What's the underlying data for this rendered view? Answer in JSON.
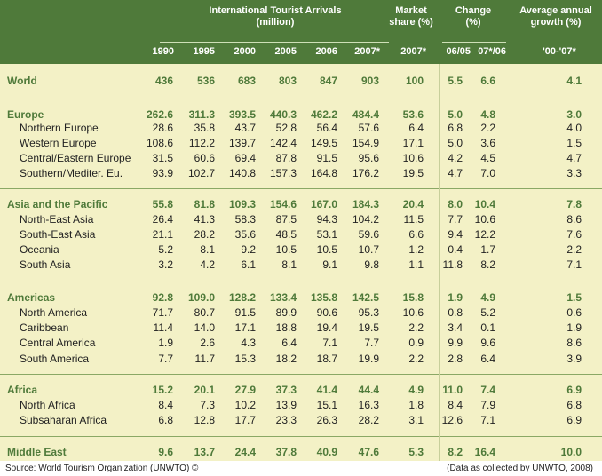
{
  "header": {
    "arrivals_title_line1": "International Tourist Arrivals",
    "arrivals_title_line2": "(million)",
    "market_share_line1": "Market",
    "market_share_line2": "share (%)",
    "change_line1": "Change",
    "change_line2": "(%)",
    "growth_line1": "Average annual",
    "growth_line2": "growth (%)",
    "years": [
      "1990",
      "1995",
      "2000",
      "2005",
      "2006",
      "2007*"
    ],
    "market_share_year": "2007*",
    "change_06_05": "06/05",
    "change_07_06": "07*/06",
    "growth_period": "'00-'07*"
  },
  "rows": [
    {
      "label": "World",
      "type": "region",
      "v": [
        "436",
        "536",
        "683",
        "803",
        "847",
        "903",
        "100",
        "5.5",
        "6.6",
        "4.1"
      ]
    },
    {
      "label": "Europe",
      "type": "region",
      "v": [
        "262.6",
        "311.3",
        "393.5",
        "440.3",
        "462.2",
        "484.4",
        "53.6",
        "5.0",
        "4.8",
        "3.0"
      ]
    },
    {
      "label": "Northern Europe",
      "type": "sub",
      "v": [
        "28.6",
        "35.8",
        "43.7",
        "52.8",
        "56.4",
        "57.6",
        "6.4",
        "6.8",
        "2.2",
        "4.0"
      ]
    },
    {
      "label": "Western Europe",
      "type": "sub",
      "v": [
        "108.6",
        "112.2",
        "139.7",
        "142.4",
        "149.5",
        "154.9",
        "17.1",
        "5.0",
        "3.6",
        "1.5"
      ]
    },
    {
      "label": "Central/Eastern Europe",
      "type": "sub",
      "v": [
        "31.5",
        "60.6",
        "69.4",
        "87.8",
        "91.5",
        "95.6",
        "10.6",
        "4.2",
        "4.5",
        "4.7"
      ]
    },
    {
      "label": "Southern/Mediter. Eu.",
      "type": "sub",
      "v": [
        "93.9",
        "102.7",
        "140.8",
        "157.3",
        "164.8",
        "176.2",
        "19.5",
        "4.7",
        "7.0",
        "3.3"
      ]
    },
    {
      "label": "Asia and the Pacific",
      "type": "region",
      "v": [
        "55.8",
        "81.8",
        "109.3",
        "154.6",
        "167.0",
        "184.3",
        "20.4",
        "8.0",
        "10.4",
        "7.8"
      ]
    },
    {
      "label": "North-East Asia",
      "type": "sub",
      "v": [
        "26.4",
        "41.3",
        "58.3",
        "87.5",
        "94.3",
        "104.2",
        "11.5",
        "7.7",
        "10.6",
        "8.6"
      ]
    },
    {
      "label": "South-East Asia",
      "type": "sub",
      "v": [
        "21.1",
        "28.2",
        "35.6",
        "48.5",
        "53.1",
        "59.6",
        "6.6",
        "9.4",
        "12.2",
        "7.6"
      ]
    },
    {
      "label": "Oceania",
      "type": "sub",
      "v": [
        "5.2",
        "8.1",
        "9.2",
        "10.5",
        "10.5",
        "10.7",
        "1.2",
        "0.4",
        "1.7",
        "2.2"
      ]
    },
    {
      "label": "South Asia",
      "type": "sub",
      "v": [
        "3.2",
        "4.2",
        "6.1",
        "8.1",
        "9.1",
        "9.8",
        "1.1",
        "11.8",
        "8.2",
        "7.1"
      ]
    },
    {
      "label": "Americas",
      "type": "region",
      "v": [
        "92.8",
        "109.0",
        "128.2",
        "133.4",
        "135.8",
        "142.5",
        "15.8",
        "1.9",
        "4.9",
        "1.5"
      ]
    },
    {
      "label": "North America",
      "type": "sub",
      "v": [
        "71.7",
        "80.7",
        "91.5",
        "89.9",
        "90.6",
        "95.3",
        "10.6",
        "0.8",
        "5.2",
        "0.6"
      ]
    },
    {
      "label": "Caribbean",
      "type": "sub",
      "v": [
        "11.4",
        "14.0",
        "17.1",
        "18.8",
        "19.4",
        "19.5",
        "2.2",
        "3.4",
        "0.1",
        "1.9"
      ]
    },
    {
      "label": "Central America",
      "type": "sub",
      "v": [
        "1.9",
        "2.6",
        "4.3",
        "6.4",
        "7.1",
        "7.7",
        "0.9",
        "9.9",
        "9.6",
        "8.6"
      ]
    },
    {
      "label": "South America",
      "type": "sub",
      "v": [
        "7.7",
        "11.7",
        "15.3",
        "18.2",
        "18.7",
        "19.9",
        "2.2",
        "2.8",
        "6.4",
        "3.9"
      ]
    },
    {
      "label": "Africa",
      "type": "region",
      "v": [
        "15.2",
        "20.1",
        "27.9",
        "37.3",
        "41.4",
        "44.4",
        "4.9",
        "11.0",
        "7.4",
        "6.9"
      ]
    },
    {
      "label": "North Africa",
      "type": "sub",
      "v": [
        "8.4",
        "7.3",
        "10.2",
        "13.9",
        "15.1",
        "16.3",
        "1.8",
        "8.4",
        "7.9",
        "6.8"
      ]
    },
    {
      "label": "Subsaharan Africa",
      "type": "sub",
      "v": [
        "6.8",
        "12.8",
        "17.7",
        "23.3",
        "26.3",
        "28.2",
        "3.1",
        "12.6",
        "7.1",
        "6.9"
      ]
    },
    {
      "label": "Middle East",
      "type": "region",
      "v": [
        "9.6",
        "13.7",
        "24.4",
        "37.8",
        "40.9",
        "47.6",
        "5.3",
        "8.2",
        "16.4",
        "10.0"
      ]
    }
  ],
  "footer": {
    "source": "Source: World Tourism Organization (UNWTO) ©",
    "note": "(Data as collected by UNWTO, 2008)"
  },
  "colors": {
    "header_bg": "#4f7a3a",
    "body_bg": "#f3f1c6",
    "region_text": "#4f7a3a"
  }
}
